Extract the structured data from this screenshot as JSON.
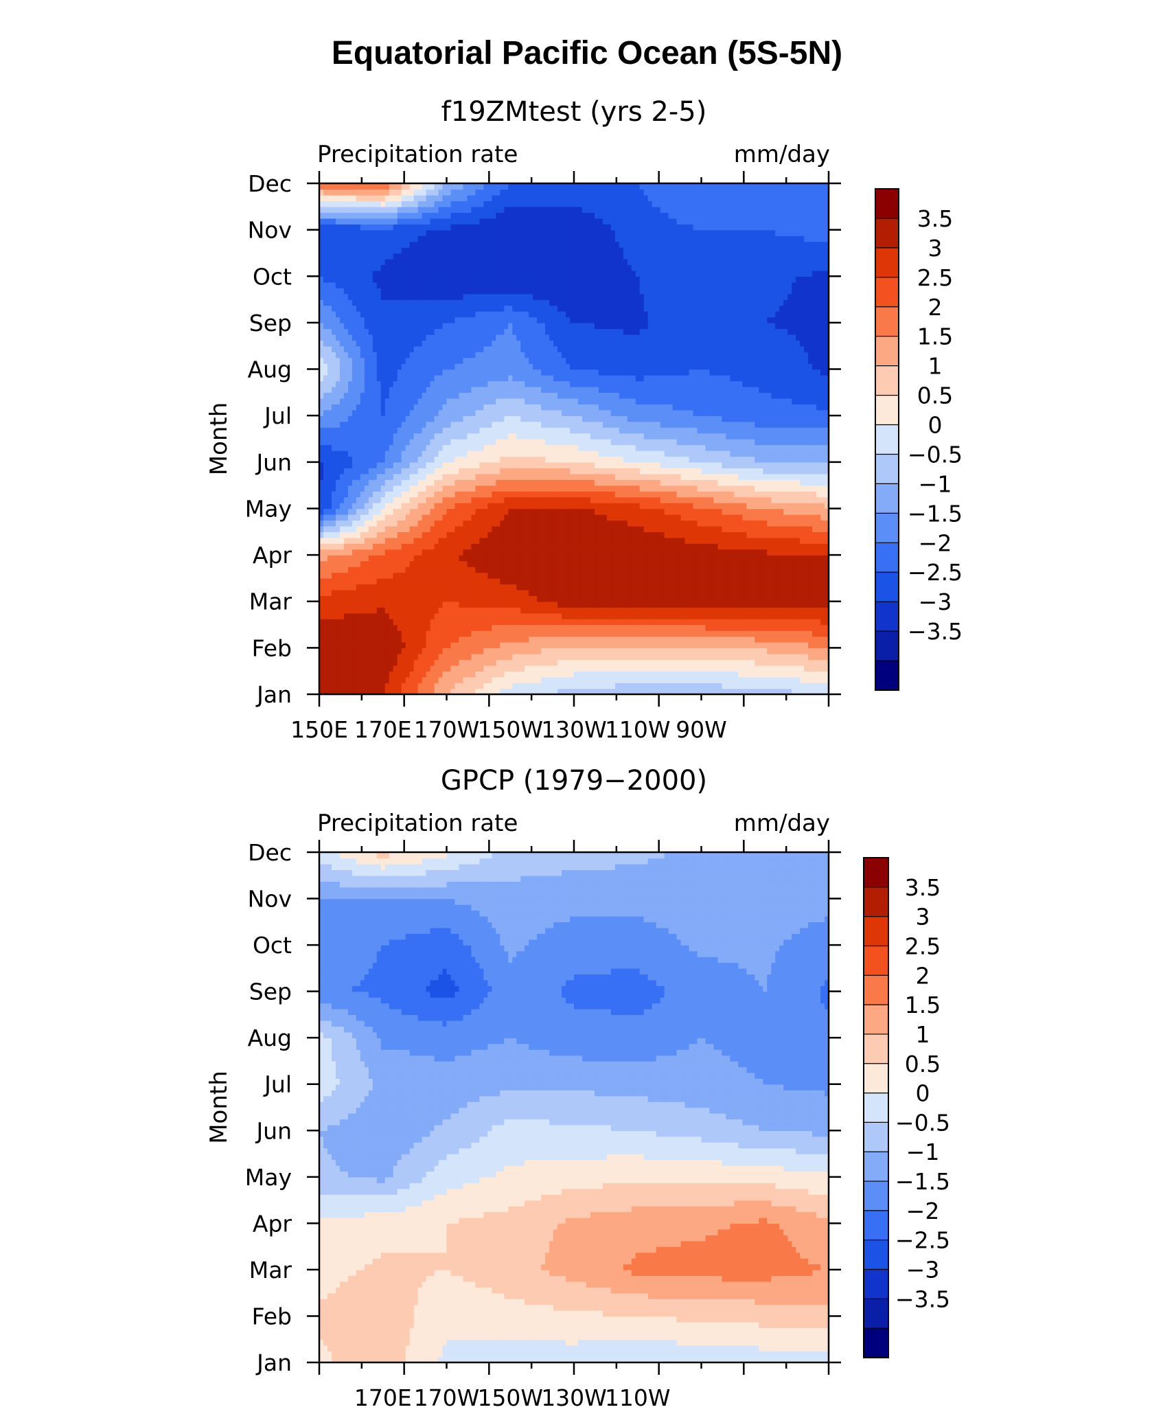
{
  "figure": {
    "title": "Equatorial Pacific Ocean (5S-5N)"
  },
  "colors": [
    "#00007f",
    "#0a1fa8",
    "#1135cc",
    "#1a53e6",
    "#3770f5",
    "#5b8ff7",
    "#83abf8",
    "#aec9f9",
    "#d4e5fb",
    "#fde9d9",
    "#fdcbb1",
    "#fca882",
    "#f97a48",
    "#f3511e",
    "#df3606",
    "#b31d02",
    "#8b0000"
  ],
  "chart_data": [
    {
      "type": "heatmap",
      "title": "f19ZMtest (yrs 2-5)",
      "left_label": "Precipitation rate",
      "right_label": "mm/day",
      "ylabel": "Month",
      "x_tick_labels": [
        "150E",
        "170E",
        "170W",
        "150W",
        "130W",
        "110W",
        "90W"
      ],
      "y_tick_labels": [
        "Jan",
        "Feb",
        "Mar",
        "Apr",
        "May",
        "Jun",
        "Jul",
        "Aug",
        "Sep",
        "Oct",
        "Nov",
        "Dec"
      ],
      "colorbar_labels": [
        "3.5",
        "3",
        "2.5",
        "2",
        "1.5",
        "1",
        "0.5",
        "0",
        "−0.5",
        "−1",
        "−1.5",
        "−2",
        "−2.5",
        "−3",
        "−3.5"
      ],
      "levels": [
        -4,
        -3.5,
        -3,
        -2.5,
        -2,
        -1.5,
        -1,
        -0.5,
        0,
        0.5,
        1,
        1.5,
        2,
        2.5,
        3,
        3.5,
        4
      ],
      "x": [
        150,
        165,
        180,
        195,
        210,
        225,
        240,
        255,
        270
      ],
      "y": [
        "Jan",
        "Feb",
        "Mar",
        "Apr",
        "May",
        "Jun",
        "Jul",
        "Aug",
        "Sep",
        "Oct",
        "Nov",
        "Dec"
      ],
      "z": [
        [
          4.0,
          3.5,
          1.5,
          0.2,
          -0.2,
          -0.4,
          -0.4,
          -0.2,
          0.0
        ],
        [
          4.0,
          4.0,
          2.5,
          1.8,
          1.4,
          1.4,
          1.4,
          1.6,
          2.0
        ],
        [
          3.2,
          3.4,
          3.0,
          3.2,
          3.8,
          3.9,
          3.9,
          3.9,
          3.8
        ],
        [
          1.8,
          2.6,
          3.4,
          4.0,
          4.0,
          4.0,
          3.8,
          3.6,
          3.5
        ],
        [
          -2.5,
          0.5,
          2.5,
          3.5,
          3.6,
          3.2,
          2.6,
          2.0,
          1.6
        ],
        [
          -2.6,
          -1.5,
          0.5,
          1.2,
          1.0,
          0.5,
          0.0,
          -0.5,
          -0.5
        ],
        [
          -1.0,
          -2.0,
          -0.8,
          0.0,
          -0.5,
          -1.2,
          -1.5,
          -1.8,
          -1.9
        ],
        [
          0.5,
          -2.2,
          -1.5,
          -1.2,
          -2.0,
          -2.2,
          -2.0,
          -2.2,
          -2.6
        ],
        [
          -1.0,
          -2.4,
          -2.0,
          -1.5,
          -2.5,
          -2.6,
          -2.0,
          -2.5,
          -2.6
        ],
        [
          -2.0,
          -2.6,
          -3.0,
          -3.0,
          -3.0,
          -2.5,
          -2.0,
          -2.4,
          -2.6
        ],
        [
          -2.5,
          -2.2,
          -2.6,
          -3.0,
          -3.0,
          -2.2,
          -2.0,
          -2.0,
          -1.8
        ],
        [
          2.4,
          2.6,
          -0.5,
          -2.0,
          -2.0,
          -2.0,
          -1.5,
          -1.5,
          -1.5
        ]
      ],
      "colorbar": true
    },
    {
      "type": "heatmap",
      "title": "GPCP (1979−2000)",
      "left_label": "Precipitation rate",
      "right_label": "mm/day",
      "ylabel": "Month",
      "x_tick_labels": [
        "170E",
        "170W",
        "150W",
        "130W",
        "110W"
      ],
      "y_tick_labels": [
        "Jan",
        "Feb",
        "Mar",
        "Apr",
        "May",
        "Jun",
        "Jul",
        "Aug",
        "Sep",
        "Oct",
        "Nov",
        "Dec"
      ],
      "colorbar_labels": [
        "3.5",
        "3",
        "2.5",
        "2",
        "1.5",
        "1",
        "0.5",
        "0",
        "−0.5",
        "−1",
        "−1.5",
        "−2",
        "−2.5",
        "−3",
        "−3.5"
      ],
      "levels": [
        -4,
        -3.5,
        -3,
        -2.5,
        -2,
        -1.5,
        -1,
        -0.5,
        0,
        0.5,
        1,
        1.5,
        2,
        2.5,
        3,
        3.5,
        4
      ],
      "x": [
        150,
        165,
        180,
        195,
        210,
        225,
        240,
        255,
        270
      ],
      "y": [
        "Jan",
        "Feb",
        "Mar",
        "Apr",
        "May",
        "Jun",
        "Jul",
        "Aug",
        "Sep",
        "Oct",
        "Nov",
        "Dec"
      ],
      "z": [
        [
          0.9,
          1.3,
          0.4,
          0.2,
          0.2,
          0.0,
          0.1,
          0.2,
          0.3
        ],
        [
          1.1,
          1.4,
          0.6,
          0.8,
          0.9,
          1.0,
          1.1,
          1.2,
          1.3
        ],
        [
          0.8,
          1.1,
          1.0,
          1.3,
          1.7,
          2.1,
          2.2,
          2.2,
          2.0
        ],
        [
          0.6,
          0.8,
          1.0,
          1.2,
          1.6,
          1.8,
          1.9,
          2.1,
          1.6
        ],
        [
          -0.4,
          -0.6,
          0.3,
          0.6,
          0.8,
          0.9,
          0.9,
          0.8,
          0.6
        ],
        [
          -0.5,
          -0.9,
          -0.4,
          0.2,
          0.1,
          0.0,
          -0.2,
          -0.5,
          -0.6
        ],
        [
          0.3,
          -0.6,
          -0.8,
          -0.6,
          -0.6,
          -0.7,
          -0.8,
          -1.0,
          -1.1
        ],
        [
          0.2,
          -1.1,
          -1.2,
          -1.0,
          -1.3,
          -1.3,
          -1.0,
          -1.2,
          -1.4
        ],
        [
          -1.4,
          -1.6,
          -2.2,
          -1.2,
          -1.6,
          -1.7,
          -1.3,
          -1.0,
          -1.6
        ],
        [
          -1.2,
          -1.5,
          -1.8,
          -0.9,
          -1.3,
          -1.3,
          -0.9,
          -0.9,
          -1.3
        ],
        [
          -1.0,
          -1.0,
          -1.0,
          -0.7,
          -0.8,
          -0.8,
          -0.7,
          -0.7,
          -0.8
        ],
        [
          0.3,
          1.2,
          0.6,
          -0.2,
          -0.3,
          -0.4,
          -0.6,
          -0.6,
          -0.6
        ]
      ],
      "colorbar": true
    }
  ]
}
